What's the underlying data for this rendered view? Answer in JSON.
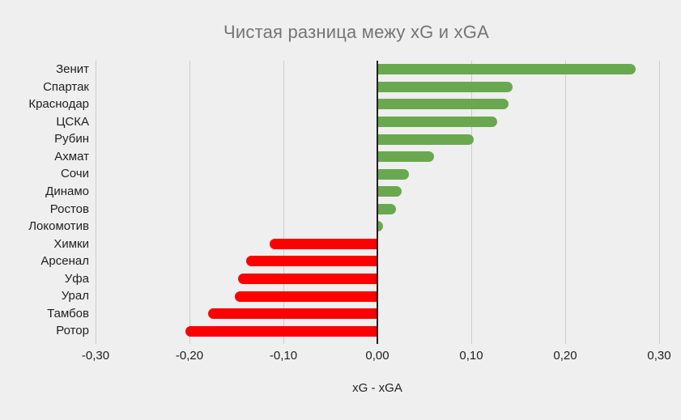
{
  "chart_data": {
    "type": "bar",
    "orientation": "horizontal",
    "title": "Чистая разница межу xG и xGA",
    "xlabel": "xG - xGA",
    "ylabel": "",
    "categories": [
      "Зенит",
      "Спартак",
      "Краснодар",
      "ЦСКА",
      "Рубин",
      "Ахмат",
      "Сочи",
      "Динамо",
      "Ростов",
      "Локомотив",
      "Химки",
      "Арсенал",
      "Уфа",
      "Урал",
      "Тамбов",
      "Ротор"
    ],
    "values": [
      0.275,
      0.144,
      0.14,
      0.128,
      0.103,
      0.06,
      0.034,
      0.026,
      0.02,
      0.006,
      -0.115,
      -0.14,
      -0.148,
      -0.152,
      -0.18,
      -0.204
    ],
    "xlim": [
      -0.3,
      0.3
    ],
    "xticks": [
      -0.3,
      -0.2,
      -0.1,
      0.0,
      0.1,
      0.2,
      0.3
    ],
    "xtick_labels": [
      "-0,30",
      "-0,20",
      "-0,10",
      "0,00",
      "0,10",
      "0,20",
      "0,30"
    ],
    "grid": true,
    "legend": "none",
    "colors": {
      "positive": "#6aa84f",
      "negative": "#ff0000",
      "background": "#efefef",
      "gridline": "#cccccc",
      "zero_axis": "#212121",
      "title": "#757575",
      "label": "#1f1f1f"
    }
  }
}
